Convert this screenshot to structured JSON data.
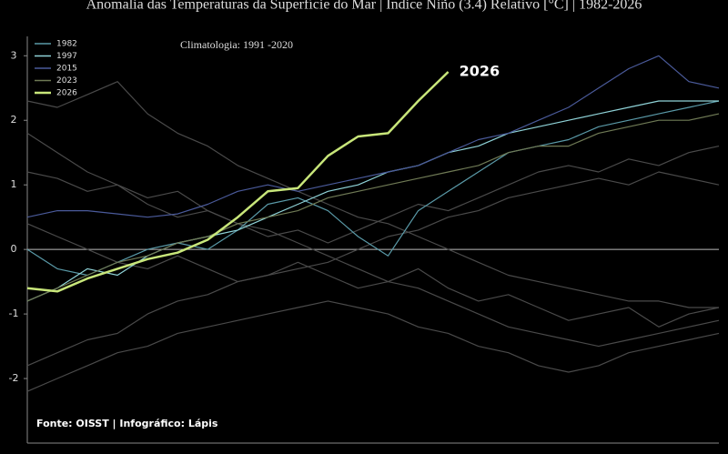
{
  "chart_data": {
    "type": "line",
    "title": "Anomalia das Temperaturas da Superfície do Mar | Índice Niño (3.4) Relativo [°C] | 1982-2026",
    "annotation": "Climatologia: 1991 -2020",
    "source": "Fonte: OISST | Infográfico: Lápis",
    "ylim": [
      -3,
      3.3
    ],
    "yticks": [
      -2,
      -1,
      0,
      1,
      2,
      3
    ],
    "legend": "upper left",
    "series": [
      {
        "color": "#4a4a4a",
        "values": [
          2.3,
          2.2,
          2.4,
          2.6,
          2.1,
          1.8,
          1.6,
          1.3,
          1.1,
          0.9,
          0.7,
          0.5,
          0.4,
          0.2,
          0.0,
          -0.2,
          -0.4,
          -0.5,
          -0.6,
          -0.7,
          -0.8,
          -0.8,
          -0.9,
          -0.9
        ]
      },
      {
        "color": "#4a4a4a",
        "values": [
          1.8,
          1.5,
          1.2,
          1.0,
          0.8,
          0.9,
          0.6,
          0.4,
          0.3,
          0.1,
          -0.1,
          -0.3,
          -0.5,
          -0.6,
          -0.8,
          -1.0,
          -1.2,
          -1.3,
          -1.4,
          -1.5,
          -1.4,
          -1.3,
          -1.2,
          -1.1
        ]
      },
      {
        "color": "#4a4a4a",
        "values": [
          -1.8,
          -1.6,
          -1.4,
          -1.3,
          -1.0,
          -0.8,
          -0.7,
          -0.5,
          -0.4,
          -0.3,
          -0.2,
          0.0,
          0.2,
          0.3,
          0.5,
          0.6,
          0.8,
          0.9,
          1.0,
          1.1,
          1.0,
          1.2,
          1.1,
          1.0
        ]
      },
      {
        "color": "#4a4a4a",
        "values": [
          -2.2,
          -2.0,
          -1.8,
          -1.6,
          -1.5,
          -1.3,
          -1.2,
          -1.1,
          -1.0,
          -0.9,
          -0.8,
          -0.9,
          -1.0,
          -1.2,
          -1.3,
          -1.5,
          -1.6,
          -1.8,
          -1.9,
          -1.8,
          -1.6,
          -1.5,
          -1.4,
          -1.3
        ]
      },
      {
        "color": "#4a4a4a",
        "values": [
          0.4,
          0.2,
          0.0,
          -0.2,
          -0.3,
          -0.1,
          -0.3,
          -0.5,
          -0.4,
          -0.2,
          -0.4,
          -0.6,
          -0.5,
          -0.3,
          -0.6,
          -0.8,
          -0.7,
          -0.9,
          -1.1,
          -1.0,
          -0.9,
          -1.2,
          -1.0,
          -0.9
        ]
      },
      {
        "color": "#4a4a4a",
        "values": [
          1.2,
          1.1,
          0.9,
          1.0,
          0.7,
          0.5,
          0.6,
          0.4,
          0.2,
          0.3,
          0.1,
          0.3,
          0.5,
          0.7,
          0.6,
          0.8,
          1.0,
          1.2,
          1.3,
          1.2,
          1.4,
          1.3,
          1.5,
          1.6
        ]
      },
      {
        "name": "1982",
        "color": "#5a9aa8",
        "values": [
          0.0,
          -0.3,
          -0.4,
          -0.2,
          0.0,
          0.1,
          0.0,
          0.3,
          0.7,
          0.8,
          0.6,
          0.2,
          -0.1,
          0.6,
          0.9,
          1.2,
          1.5,
          1.6,
          1.7,
          1.9,
          2.0,
          2.1,
          2.2,
          2.3
        ]
      },
      {
        "name": "1997",
        "color": "#8fd3d8",
        "values": [
          -0.8,
          -0.6,
          -0.3,
          -0.4,
          -0.1,
          0.1,
          0.2,
          0.3,
          0.5,
          0.7,
          0.9,
          1.0,
          1.2,
          1.3,
          1.5,
          1.6,
          1.8,
          1.9,
          2.0,
          2.1,
          2.2,
          2.3,
          2.3,
          2.3
        ]
      },
      {
        "name": "2015",
        "color": "#4a5a9a",
        "values": [
          0.5,
          0.6,
          0.6,
          0.55,
          0.5,
          0.55,
          0.7,
          0.9,
          1.0,
          0.9,
          1.0,
          1.1,
          1.2,
          1.3,
          1.5,
          1.7,
          1.8,
          2.0,
          2.2,
          2.5,
          2.8,
          3.0,
          2.6,
          2.5
        ]
      },
      {
        "name": "2023",
        "color": "#6f7a55",
        "values": [
          -0.8,
          -0.6,
          -0.4,
          -0.2,
          -0.1,
          0.1,
          0.2,
          0.4,
          0.5,
          0.6,
          0.8,
          0.9,
          1.0,
          1.1,
          1.2,
          1.3,
          1.5,
          1.6,
          1.6,
          1.8,
          1.9,
          2.0,
          2.0,
          2.1
        ]
      },
      {
        "name": "2026",
        "color": "#c8e67a",
        "values": [
          -0.6,
          -0.65,
          -0.45,
          -0.3,
          -0.15,
          -0.05,
          0.15,
          0.5,
          0.9,
          0.95,
          1.45,
          1.75,
          1.8,
          2.3,
          2.75
        ]
      }
    ]
  }
}
